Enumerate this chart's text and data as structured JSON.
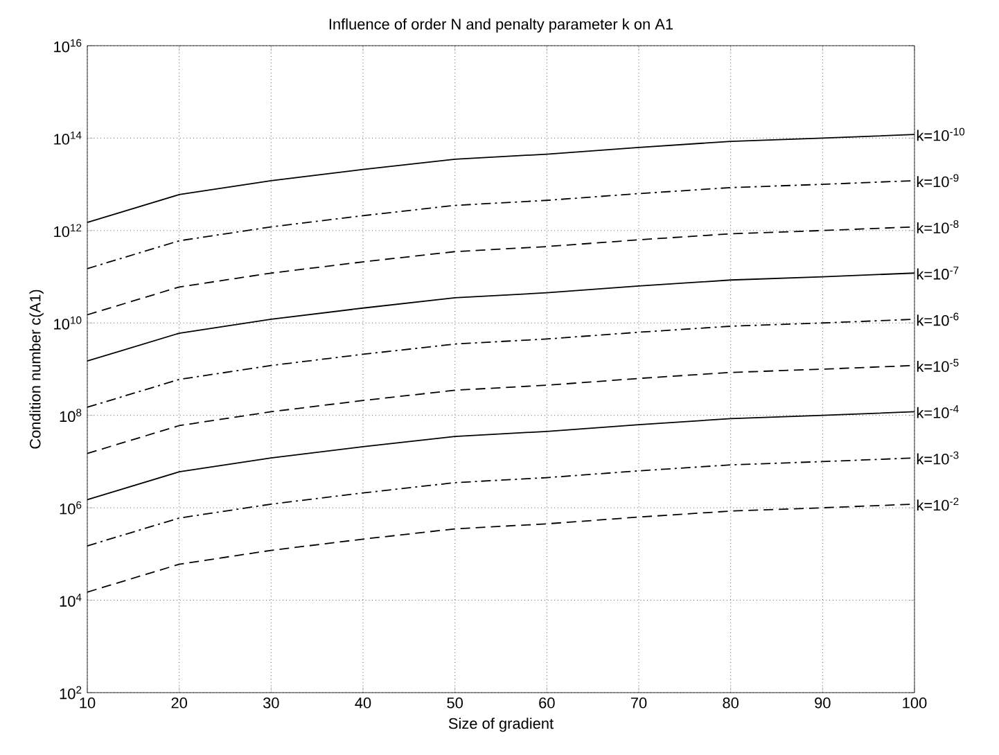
{
  "chart_data": {
    "type": "line",
    "title": "Influence of order N and penalty parameter k on A1",
    "xlabel": "Size of gradient",
    "ylabel": "Condition number c(A1)",
    "x": [
      10,
      20,
      30,
      40,
      50,
      60,
      70,
      80,
      90,
      100
    ],
    "series": [
      {
        "name": "k=10$^{-10}$",
        "color": "#000000",
        "line_style": "solid",
        "values": [
          1500000000000.0,
          6000000000000.0,
          12000000000000.0,
          21000000000000.0,
          35000000000000.0,
          45000000000000.0,
          63000000000000.0,
          85000000000000.0,
          100000000000000.0,
          120000000000000.0
        ]
      },
      {
        "name": "k=10$^{-9}$",
        "color": "#000000",
        "line_style": "dashdot",
        "values": [
          150000000000.0,
          600000000000.0,
          1200000000000.0,
          2100000000000.0,
          3500000000000.0,
          4500000000000.0,
          6300000000000.0,
          8500000000000.0,
          10000000000000.0,
          12000000000000.0
        ]
      },
      {
        "name": "k=10$^{-8}$",
        "color": "#000000",
        "line_style": "dashed",
        "values": [
          15000000000.0,
          60000000000.0,
          120000000000.0,
          210000000000.0,
          350000000000.0,
          450000000000.0,
          630000000000.0,
          850000000000.0,
          1000000000000.0,
          1200000000000.0
        ]
      },
      {
        "name": "k=10$^{-7}$",
        "color": "#000000",
        "line_style": "solid",
        "values": [
          1500000000.0,
          6000000000.0,
          12000000000.0,
          21000000000.0,
          35000000000.0,
          45000000000.0,
          63000000000.0,
          85000000000.0,
          100000000000.0,
          120000000000.0
        ]
      },
      {
        "name": "k=10$^{-6}$",
        "color": "#000000",
        "line_style": "dashdot",
        "values": [
          150000000.0,
          600000000.0,
          1200000000.0,
          2100000000.0,
          3500000000.0,
          4500000000.0,
          6300000000.0,
          8500000000.0,
          10000000000.0,
          12000000000.0
        ]
      },
      {
        "name": "k=10$^{-5}$",
        "color": "#000000",
        "line_style": "dashed",
        "values": [
          15000000.0,
          60000000.0,
          120000000.0,
          210000000.0,
          350000000.0,
          450000000.0,
          630000000.0,
          850000000.0,
          1000000000.0,
          1200000000.0
        ]
      },
      {
        "name": "k=10$^{-4}$",
        "color": "#000000",
        "line_style": "solid",
        "values": [
          1500000.0,
          6000000.0,
          12000000.0,
          21000000.0,
          35000000.0,
          45000000.0,
          63000000.0,
          85000000.0,
          100000000.0,
          120000000.0
        ]
      },
      {
        "name": "k=10$^{-3}$",
        "color": "#000000",
        "line_style": "dashdot",
        "values": [
          150000.0,
          600000.0,
          1200000.0,
          2100000.0,
          3500000.0,
          4500000.0,
          6300000.0,
          8500000.0,
          10000000.0,
          12000000.0
        ]
      },
      {
        "name": "k=10$^{-2}$",
        "color": "#000000",
        "line_style": "dashed",
        "values": [
          15000.0,
          60000.0,
          120000.0,
          210000.0,
          350000.0,
          450000.0,
          630000.0,
          850000.0,
          1000000.0,
          1200000.0
        ]
      }
    ],
    "log": "y",
    "grid": true,
    "xlim": [
      10,
      100
    ],
    "xticks": [
      10,
      20,
      30,
      40,
      50,
      60,
      70,
      80,
      90,
      100
    ],
    "ylim": [
      100,
      1e+16
    ],
    "yticks": [
      {
        "value": 100,
        "label": "10$^{2}$"
      },
      {
        "value": 10000,
        "label": "10$^{4}$"
      },
      {
        "value": 1000000.0,
        "label": "10$^{6}$"
      },
      {
        "value": 100000000.0,
        "label": "10$^{8}$"
      },
      {
        "value": 10000000000.0,
        "label": "10$^{10}$"
      },
      {
        "value": 1000000000000.0,
        "label": "10$^{12}$"
      },
      {
        "value": 100000000000000.0,
        "label": "10$^{14}$"
      },
      {
        "value": 1e+16,
        "label": "10$^{16}$"
      }
    ]
  }
}
